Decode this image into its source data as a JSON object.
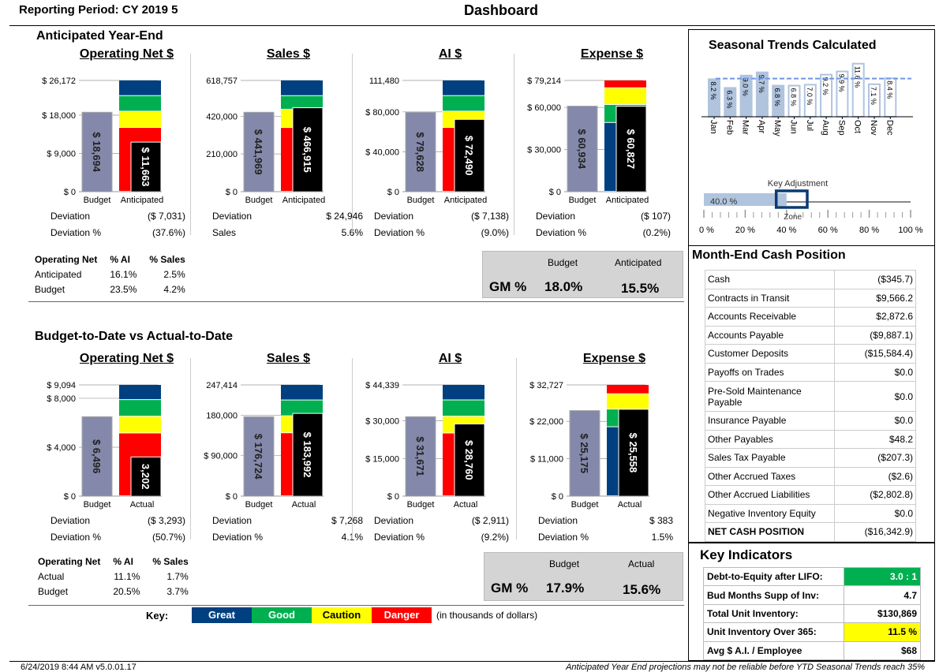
{
  "header": {
    "reporting_period": "Reporting Period:  CY 2019 5",
    "title": "Dashboard"
  },
  "colors": {
    "great": "#004080",
    "good": "#00b050",
    "caution": "#ffff00",
    "danger": "#ff0000",
    "budget_bar": "#8489ab",
    "actual_bar": "#000000",
    "seasonal": "#b0c4de"
  },
  "anticipated": {
    "title": "Anticipated Year-End",
    "charts": [
      {
        "title": "Operating Net $",
        "ticks": [
          0,
          9000,
          18000,
          26172
        ],
        "tick_labels": [
          "$ 0",
          "$ 9,000",
          "$ 18,000",
          "$ 26,172"
        ],
        "max": 26172,
        "budget": 18694,
        "budget_label": "$ 18,694",
        "actual": 11663,
        "actual_label": "$ 11,663",
        "cat_budget": "Budget",
        "cat_actual": "Anticipated",
        "bands": [
          {
            "c": "danger",
            "from": 0,
            "to": 15020
          },
          {
            "c": "caution",
            "from": 15020,
            "to": 18840
          },
          {
            "c": "good",
            "from": 18840,
            "to": 22510
          },
          {
            "c": "great",
            "from": 22510,
            "to": 26172
          }
        ],
        "rows": [
          [
            "Deviation",
            "($ 7,031)"
          ],
          [
            "Deviation %",
            "(37.6%)"
          ]
        ]
      },
      {
        "title": "Sales $",
        "ticks": [
          0,
          210000,
          420000,
          618757
        ],
        "tick_labels": [
          "$ 0",
          "210,000",
          "420,000",
          "618,757"
        ],
        "max": 618757,
        "budget": 441969,
        "budget_label": "$ 441,969",
        "actual": 466915,
        "actual_label": "$ 466,915",
        "cat_budget": "Budget",
        "cat_actual": "Anticipated",
        "bands": [
          {
            "c": "danger",
            "from": 0,
            "to": 355000
          },
          {
            "c": "caution",
            "from": 355000,
            "to": 456000
          },
          {
            "c": "good",
            "from": 456000,
            "to": 532000
          },
          {
            "c": "great",
            "from": 532000,
            "to": 618757
          }
        ],
        "rows": [
          [
            "Deviation",
            "$ 24,946"
          ],
          [
            "Sales",
            "5.6%"
          ]
        ]
      },
      {
        "title": "AI $",
        "ticks": [
          0,
          40000,
          80000,
          111480
        ],
        "tick_labels": [
          "$ 0",
          "$ 40,000",
          "$ 80,000",
          "111,480"
        ],
        "max": 111480,
        "budget": 79628,
        "budget_label": "$ 79,628",
        "actual": 72490,
        "actual_label": "$ 72,490",
        "cat_budget": "Budget",
        "cat_actual": "Anticipated",
        "bands": [
          {
            "c": "danger",
            "from": 0,
            "to": 64000
          },
          {
            "c": "caution",
            "from": 64000,
            "to": 80300
          },
          {
            "c": "good",
            "from": 80300,
            "to": 95900
          },
          {
            "c": "great",
            "from": 95900,
            "to": 111480
          }
        ],
        "rows": [
          [
            "Deviation",
            "($ 7,138)"
          ],
          [
            "Deviation %",
            "(9.0%)"
          ]
        ]
      },
      {
        "title": "Expense $",
        "ticks": [
          0,
          30000,
          60000,
          79214
        ],
        "tick_labels": [
          "$ 0",
          "$ 30,000",
          "$ 60,000",
          "$ 79,214"
        ],
        "max": 79214,
        "budget": 60934,
        "budget_label": "$ 60,934",
        "actual": 60827,
        "actual_label": "$ 60,827",
        "cat_budget": "Budget",
        "cat_actual": "Anticipated",
        "bands": [
          {
            "c": "great",
            "from": 0,
            "to": 49000
          },
          {
            "c": "good",
            "from": 49000,
            "to": 61800
          },
          {
            "c": "caution",
            "from": 61800,
            "to": 73700
          },
          {
            "c": "danger",
            "from": 73700,
            "to": 79214
          }
        ],
        "rows": [
          [
            "Deviation",
            "($ 107)"
          ],
          [
            "Deviation %",
            "(0.2%)"
          ]
        ]
      }
    ],
    "pct_table": {
      "headers": [
        "Operating Net",
        "% AI",
        "% Sales"
      ],
      "rows": [
        [
          "Anticipated",
          "16.1%",
          "2.5%"
        ],
        [
          "Budget",
          "23.5%",
          "4.2%"
        ]
      ]
    },
    "gm": {
      "label": "GM %",
      "budget_header": "Budget",
      "actual_header": "Anticipated",
      "budget": "18.0%",
      "actual": "15.5%"
    }
  },
  "to_date": {
    "title": "Budget-to-Date vs Actual-to-Date",
    "charts": [
      {
        "title": "Operating Net $",
        "ticks": [
          0,
          4000,
          8000,
          9094
        ],
        "tick_labels": [
          "$ 0",
          "$ 4,000",
          "$ 8,000",
          "$ 9,094"
        ],
        "max": 9094,
        "budget": 6496,
        "budget_label": "$ 6,496",
        "actual": 3202,
        "actual_label": "3,202",
        "cat_budget": "Budget",
        "cat_actual": "Actual",
        "bands": [
          {
            "c": "danger",
            "from": 0,
            "to": 5130
          },
          {
            "c": "caution",
            "from": 5130,
            "to": 6500
          },
          {
            "c": "good",
            "from": 6500,
            "to": 7860
          },
          {
            "c": "great",
            "from": 7860,
            "to": 9094
          }
        ],
        "rows": [
          [
            "Deviation",
            "($ 3,293)"
          ],
          [
            "Deviation %",
            "(50.7%)"
          ]
        ]
      },
      {
        "title": "Sales $",
        "ticks": [
          0,
          90000,
          180000,
          247414
        ],
        "tick_labels": [
          "$ 0",
          "$ 90,000",
          "180,000",
          "247,414"
        ],
        "max": 247414,
        "budget": 176724,
        "budget_label": "$ 176,724",
        "actual": 183992,
        "actual_label": "$ 183,992",
        "cat_budget": "Budget",
        "cat_actual": "Actual",
        "bands": [
          {
            "c": "danger",
            "from": 0,
            "to": 140000
          },
          {
            "c": "caution",
            "from": 140000,
            "to": 178000
          },
          {
            "c": "good",
            "from": 178000,
            "to": 213000
          },
          {
            "c": "great",
            "from": 213000,
            "to": 247414
          }
        ],
        "rows": [
          [
            "Deviation",
            "$ 7,268"
          ],
          [
            "Deviation %",
            "4.1%"
          ]
        ]
      },
      {
        "title": "AI $",
        "ticks": [
          0,
          15000,
          30000,
          44339
        ],
        "tick_labels": [
          "$ 0",
          "$ 15,000",
          "$ 30,000",
          "$ 44,339"
        ],
        "max": 44339,
        "budget": 31671,
        "budget_label": "$ 31,671",
        "actual": 28760,
        "actual_label": "$ 28,760",
        "cat_budget": "Budget",
        "cat_actual": "Actual",
        "bands": [
          {
            "c": "danger",
            "from": 0,
            "to": 25000
          },
          {
            "c": "caution",
            "from": 25000,
            "to": 31700
          },
          {
            "c": "good",
            "from": 31700,
            "to": 38200
          },
          {
            "c": "great",
            "from": 38200,
            "to": 44339
          }
        ],
        "rows": [
          [
            "Deviation",
            "($ 2,911)"
          ],
          [
            "Deviation %",
            "(9.2%)"
          ]
        ]
      },
      {
        "title": "Expense $",
        "ticks": [
          0,
          11000,
          22000,
          32727
        ],
        "tick_labels": [
          "$ 0",
          "$ 11,000",
          "$ 22,000",
          "$ 32,727"
        ],
        "max": 32727,
        "budget": 25175,
        "budget_label": "$ 25,175",
        "actual": 25558,
        "actual_label": "$ 25,558",
        "cat_budget": "Budget",
        "cat_actual": "Actual",
        "bands": [
          {
            "c": "great",
            "from": 0,
            "to": 20300
          },
          {
            "c": "good",
            "from": 20300,
            "to": 25500
          },
          {
            "c": "caution",
            "from": 25500,
            "to": 30000
          },
          {
            "c": "danger",
            "from": 30000,
            "to": 32727
          }
        ],
        "rows": [
          [
            "Deviation",
            "$ 383"
          ],
          [
            "Deviation %",
            "1.5%"
          ]
        ]
      }
    ],
    "pct_table": {
      "headers": [
        "Operating Net",
        "% AI",
        "% Sales"
      ],
      "rows": [
        [
          "Actual",
          "11.1%",
          "1.7%"
        ],
        [
          "Budget",
          "20.5%",
          "3.7%"
        ]
      ]
    },
    "gm": {
      "label": "GM %",
      "budget_header": "Budget",
      "actual_header": "Actual",
      "budget": "17.9%",
      "actual": "15.6%"
    }
  },
  "key": {
    "label": "Key:",
    "items": [
      "Great",
      "Good",
      "Caution",
      "Danger"
    ],
    "note": "(in thousands of dollars)"
  },
  "seasonal": {
    "title": "Seasonal Trends Calculated",
    "chart_data": {
      "type": "bar",
      "categories": [
        "Jan",
        "Feb",
        "Mar",
        "Apr",
        "May",
        "Jun",
        "Jul",
        "Aug",
        "Sep",
        "Oct",
        "Nov",
        "Dec"
      ],
      "values": [
        8.2,
        6.3,
        9.0,
        9.7,
        6.8,
        6.8,
        7.0,
        9.2,
        9.9,
        11.6,
        7.1,
        8.4
      ],
      "labels": [
        "8.2 %",
        "6.3 %",
        "9.0 %",
        "9.7 %",
        "6.8 %",
        "6.8 %",
        "7.0 %",
        "9.2 %",
        "9.9 %",
        "11.6 %",
        "7.1 %",
        "8.4 %"
      ],
      "filled_through": "May",
      "average_line": 8.33
    },
    "adjustment": {
      "title": "Key Adjustment",
      "value": 40.0,
      "value_label": "40.0 %",
      "zone_label": "Zone",
      "zone_range": [
        35,
        50
      ],
      "ticks": [
        "0 %",
        "20 %",
        "40 %",
        "60 %",
        "80 %",
        "100 %"
      ]
    }
  },
  "cash": {
    "title": "Month-End Cash Position",
    "rows": [
      [
        "Cash",
        "($345.7)"
      ],
      [
        "Contracts in Transit",
        "$9,566.2"
      ],
      [
        "Accounts Receivable",
        "$2,872.6"
      ],
      [
        "Accounts Payable",
        "($9,887.1)"
      ],
      [
        "Customer Deposits",
        "($15,584.4)"
      ],
      [
        "Payoffs on Trades",
        "$0.0"
      ],
      [
        "Pre-Sold Maintenance Payable",
        "$0.0"
      ],
      [
        "Insurance Payable",
        "$0.0"
      ],
      [
        "Other Payables",
        "$48.2"
      ],
      [
        "Sales Tax Payable",
        "($207.3)"
      ],
      [
        "Other Accrued Taxes",
        "($2.6)"
      ],
      [
        "Other Accrued Liabilities",
        "($2,802.8)"
      ],
      [
        "Negative Inventory Equity",
        "$0.0"
      ],
      [
        "NET CASH POSITION",
        "($16,342.9)"
      ]
    ]
  },
  "indicators": {
    "title": "Key Indicators",
    "rows": [
      [
        "Debt-to-Equity after LIFO:",
        "3.0 : 1",
        "#00b050"
      ],
      [
        "Bud Months Supp of Inv:",
        "4.7",
        ""
      ],
      [
        "Total Unit Inventory:",
        "$130,869",
        ""
      ],
      [
        "Unit Inventory Over 365:",
        "11.5 %",
        "#ffff00"
      ],
      [
        "Avg $ A.I. / Employee",
        "$68",
        ""
      ]
    ]
  },
  "footer": {
    "left": "6/24/2019 8:44 AM  v5.0.01.17",
    "right": "Anticipated Year End projections may not be reliable before YTD Seasonal Trends reach 35%"
  }
}
